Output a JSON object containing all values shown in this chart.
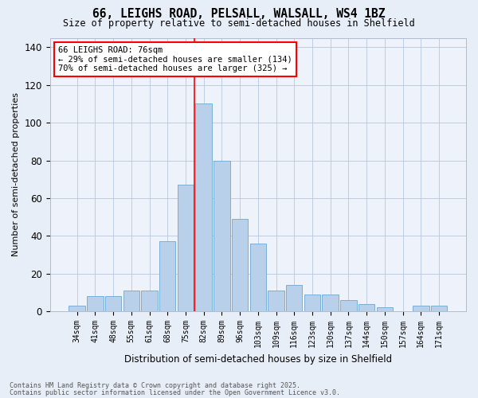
{
  "title_line1": "66, LEIGHS ROAD, PELSALL, WALSALL, WS4 1BZ",
  "title_line2": "Size of property relative to semi-detached houses in Shelfield",
  "xlabel": "Distribution of semi-detached houses by size in Shelfield",
  "ylabel": "Number of semi-detached properties",
  "categories": [
    "34sqm",
    "41sqm",
    "48sqm",
    "55sqm",
    "61sqm",
    "68sqm",
    "75sqm",
    "82sqm",
    "89sqm",
    "96sqm",
    "103sqm",
    "109sqm",
    "116sqm",
    "123sqm",
    "130sqm",
    "137sqm",
    "144sqm",
    "150sqm",
    "157sqm",
    "164sqm",
    "171sqm"
  ],
  "values": [
    3,
    8,
    8,
    11,
    11,
    37,
    67,
    110,
    80,
    49,
    36,
    11,
    14,
    9,
    9,
    6,
    4,
    2,
    0,
    3,
    3
  ],
  "bar_color": "#b8d0ea",
  "bar_edge_color": "#7aafd4",
  "red_line_x": 7,
  "annotation_title": "66 LEIGHS ROAD: 76sqm",
  "annotation_line1": "← 29% of semi-detached houses are smaller (134)",
  "annotation_line2": "70% of semi-detached houses are larger (325) →",
  "ylim": [
    0,
    145
  ],
  "yticks": [
    0,
    20,
    40,
    60,
    80,
    100,
    120,
    140
  ],
  "footer_line1": "Contains HM Land Registry data © Crown copyright and database right 2025.",
  "footer_line2": "Contains public sector information licensed under the Open Government Licence v3.0.",
  "bg_color": "#e8eef8",
  "plot_bg_color": "#eef2fb"
}
